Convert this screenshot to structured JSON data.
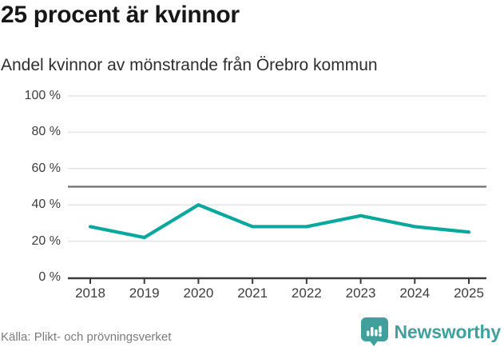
{
  "header": {
    "title": "25 procent är kvinnor",
    "subtitle": "Andel kvinnor av mönstrande från Örebro kommun"
  },
  "chart_data": {
    "type": "line",
    "title": "25 procent är kvinnor",
    "subtitle": "Andel kvinnor av mönstrande från Örebro kommun",
    "categories": [
      "2018",
      "2019",
      "2020",
      "2021",
      "2022",
      "2023",
      "2024",
      "2025"
    ],
    "series": [
      {
        "name": "Andel kvinnor av mönstrande",
        "values": [
          28,
          22,
          40,
          28,
          28,
          34,
          28,
          25
        ]
      }
    ],
    "unit": "%",
    "ylim": [
      0,
      100
    ],
    "y_ticks": [
      {
        "value": 0,
        "label": "0 %"
      },
      {
        "value": 20,
        "label": "20 %"
      },
      {
        "value": 40,
        "label": "40 %"
      },
      {
        "value": 60,
        "label": "60 %"
      },
      {
        "value": 80,
        "label": "80 %"
      },
      {
        "value": 100,
        "label": "100 %"
      }
    ],
    "reference_line": 50,
    "grid": true,
    "legend": "none",
    "colors": {
      "line": "#0aa79c",
      "gridline": "#e4e4e4",
      "reference_line": "#6e6e6e",
      "axis": "#3b3b3b"
    }
  },
  "footer": {
    "source": "Källa: Plikt- och prövningsverket",
    "brand": "Newsworthy",
    "brand_color": "#41a09b",
    "brand_icon": "bar-chart-speech-bubble-icon"
  }
}
